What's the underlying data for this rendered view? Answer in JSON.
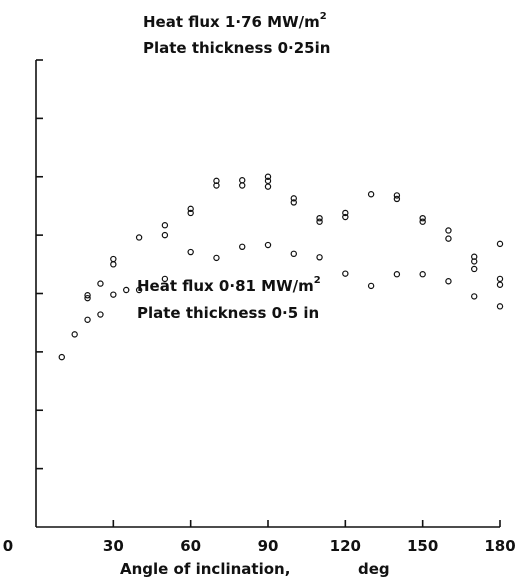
{
  "chart_data": {
    "type": "scatter",
    "xlabel": "Angle of inclination,",
    "xunit": "deg",
    "xlim": [
      0,
      180
    ],
    "ylim": [
      0,
      8
    ],
    "x_ticks": [
      0,
      30,
      60,
      90,
      120,
      150,
      180
    ],
    "x_tick_labels": [
      "0",
      "30",
      "60",
      "90",
      "120",
      "150",
      "180"
    ],
    "y_ticks": [
      1,
      2,
      3,
      4,
      5,
      6,
      7,
      8
    ],
    "grid": false,
    "annotations": [
      {
        "line1": "Heat flux 1·76 MW/m",
        "sup": "2",
        "line2": "Plate  thickness 0·25in"
      },
      {
        "line1": "Heat flux 0·81 MW/m",
        "sup": "2",
        "line2": "Plate  thickness 0·5 in"
      }
    ],
    "series": [
      {
        "points": [
          [
            20,
            3.97
          ],
          [
            20,
            3.92
          ],
          [
            25,
            4.17
          ],
          [
            30,
            4.59
          ],
          [
            30,
            4.5
          ],
          [
            40,
            4.96
          ],
          [
            50,
            5.17
          ],
          [
            50,
            5.0
          ],
          [
            60,
            5.45
          ],
          [
            60,
            5.38
          ],
          [
            70,
            5.93
          ],
          [
            70,
            5.85
          ],
          [
            80,
            5.94
          ],
          [
            80,
            5.85
          ],
          [
            90,
            6.0
          ],
          [
            90,
            5.93
          ],
          [
            90,
            5.83
          ],
          [
            100,
            5.63
          ],
          [
            100,
            5.56
          ],
          [
            110,
            5.29
          ],
          [
            110,
            5.23
          ],
          [
            120,
            5.38
          ],
          [
            120,
            5.31
          ],
          [
            130,
            5.7
          ],
          [
            140,
            5.68
          ],
          [
            140,
            5.62
          ],
          [
            150,
            5.29
          ],
          [
            150,
            5.23
          ],
          [
            160,
            5.08
          ],
          [
            160,
            4.94
          ],
          [
            170,
            4.63
          ],
          [
            170,
            4.55
          ],
          [
            170,
            4.42
          ],
          [
            180,
            4.85
          ],
          [
            180,
            4.25
          ],
          [
            180,
            4.15
          ]
        ]
      },
      {
        "points": [
          [
            10,
            2.91
          ],
          [
            15,
            3.3
          ],
          [
            20,
            3.55
          ],
          [
            25,
            3.64
          ],
          [
            30,
            3.98
          ],
          [
            35,
            4.06
          ],
          [
            40,
            4.06
          ],
          [
            50,
            4.25
          ],
          [
            60,
            4.71
          ],
          [
            70,
            4.61
          ],
          [
            80,
            4.8
          ],
          [
            90,
            4.83
          ],
          [
            100,
            4.68
          ],
          [
            110,
            4.62
          ],
          [
            120,
            4.34
          ],
          [
            130,
            4.13
          ],
          [
            140,
            4.33
          ],
          [
            150,
            4.33
          ],
          [
            160,
            4.21
          ],
          [
            170,
            3.95
          ],
          [
            180,
            3.78
          ]
        ]
      }
    ]
  }
}
